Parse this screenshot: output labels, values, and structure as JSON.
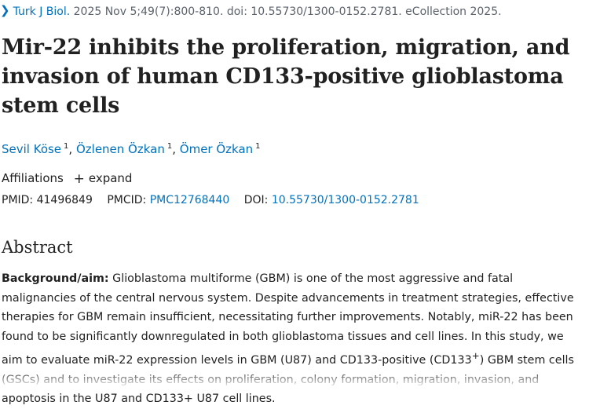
{
  "citation": {
    "journal": "Turk J Biol.",
    "details": "2025 Nov 5;49(7):800-810. doi: 10.55730/1300-0152.2781. eCollection 2025."
  },
  "article": {
    "title": "Mir-22 inhibits the proliferation, migration, and invasion of human CD133-positive glioblastoma stem cells"
  },
  "authors": [
    {
      "name": "Sevil Köse",
      "affiliation_ref": "1"
    },
    {
      "name": "Özlenen Özkan",
      "affiliation_ref": "1"
    },
    {
      "name": "Ömer Özkan",
      "affiliation_ref": "1"
    }
  ],
  "affiliations": {
    "label": "Affiliations",
    "expand_label": "expand"
  },
  "identifiers": {
    "pmid_label": "PMID:",
    "pmid": "41496849",
    "pmcid_label": "PMCID:",
    "pmcid": "PMC12768440",
    "doi_label": "DOI:",
    "doi": "10.55730/1300-0152.2781"
  },
  "abstract": {
    "heading": "Abstract",
    "section_label": "Background/aim:",
    "text_part1": " Glioblastoma multiforme (GBM) is one of the most aggressive and fatal malignancies of the central nervous system. Despite advancements in treatment strategies, effective therapies for GBM remain insufficient, necessitating further improvements. Notably, miR-22 has been found to be significantly downregulated in both glioblastoma tissues and cell lines. In this study, we aim to evaluate miR-22 expression levels in GBM (U87) and CD133-positive (CD133",
    "superscript": "+",
    "text_part2": ") GBM stem cells (GSCs) and to investigate its effects on proliferation, colony formation, migration, invasion, and apoptosis in the U87 and CD133+ U87 cell lines."
  },
  "colors": {
    "link": "#0071bc",
    "text": "#212121",
    "muted": "#5b616b"
  }
}
